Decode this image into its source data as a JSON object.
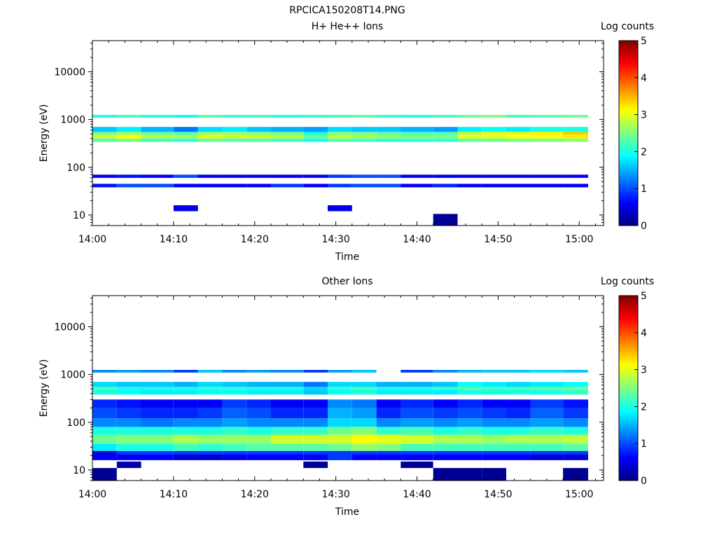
{
  "figure_title": "RPCICA150208T14.PNG",
  "colorscale": {
    "stops": [
      "#00007f",
      "#0000ff",
      "#007fff",
      "#00ffff",
      "#7fff7f",
      "#ffff00",
      "#ff7f00",
      "#ff0000",
      "#7f0000"
    ]
  },
  "chart_data": [
    {
      "type": "heatmap",
      "title": "H+ He++ Ions",
      "xlabel": "Time",
      "ylabel": "Energy (eV)",
      "yscale": "log",
      "ylim": [
        6,
        45000
      ],
      "xlim": [
        "14:00",
        "15:03"
      ],
      "xticks": [
        "14:00",
        "14:10",
        "14:20",
        "14:30",
        "14:40",
        "14:50",
        "15:00"
      ],
      "yticks": [
        {
          "value": 10,
          "label": "10"
        },
        {
          "value": 100,
          "label": "100"
        },
        {
          "value": 1000,
          "label": "1000"
        },
        {
          "value": 10000,
          "label": "10000"
        }
      ],
      "colorbar": {
        "label": "Log counts",
        "range": [
          0,
          5
        ],
        "ticks": [
          "0",
          "1",
          "2",
          "3",
          "4",
          "5"
        ]
      },
      "time_bins": [
        "14:00",
        "14:03",
        "14:06",
        "14:10",
        "14:13",
        "14:16",
        "14:19",
        "14:22",
        "14:26",
        "14:29",
        "14:32",
        "14:35",
        "14:38",
        "14:42",
        "14:45",
        "14:48",
        "14:51",
        "14:54",
        "14:58",
        "15:01"
      ],
      "bands": [
        {
          "e_low": 1100,
          "e_high": 1250,
          "values": [
            2.0,
            2.2,
            2.0,
            1.9,
            2.3,
            2.1,
            2.2,
            2.0,
            2.1,
            2.2,
            2.3,
            2.1,
            2.0,
            2.2,
            2.4,
            2.5,
            2.2,
            2.3,
            2.4,
            2.5
          ]
        },
        {
          "e_low": 550,
          "e_high": 700,
          "values": [
            1.6,
            1.8,
            1.5,
            1.2,
            1.7,
            1.8,
            1.6,
            1.5,
            1.4,
            1.7,
            1.6,
            1.6,
            1.5,
            1.4,
            1.8,
            1.9,
            1.8,
            2.0,
            2.0,
            2.1
          ]
        },
        {
          "e_low": 480,
          "e_high": 550,
          "values": [
            2.4,
            2.6,
            2.3,
            2.2,
            2.6,
            2.6,
            2.5,
            2.4,
            1.9,
            2.5,
            2.4,
            2.3,
            2.2,
            2.2,
            2.8,
            3.0,
            3.0,
            3.2,
            3.4,
            3.4
          ]
        },
        {
          "e_low": 400,
          "e_high": 480,
          "values": [
            2.9,
            3.1,
            2.8,
            2.7,
            3.0,
            2.9,
            2.9,
            2.8,
            2.4,
            2.8,
            2.7,
            2.6,
            2.5,
            2.5,
            3.0,
            3.0,
            3.1,
            3.1,
            3.2,
            3.3
          ]
        },
        {
          "e_low": 340,
          "e_high": 400,
          "values": [
            2.3,
            2.5,
            2.2,
            2.1,
            2.4,
            2.3,
            2.3,
            2.2,
            2.0,
            2.3,
            2.2,
            2.1,
            2.1,
            2.1,
            2.4,
            2.4,
            2.5,
            2.5,
            2.6,
            2.6
          ]
        },
        {
          "e_low": 60,
          "e_high": 70,
          "values": [
            0.6,
            0.7,
            0.6,
            1.0,
            0.6,
            0.6,
            0.6,
            0.6,
            0.6,
            0.9,
            1.0,
            1.0,
            0.6,
            0.6,
            0.6,
            0.6,
            0.6,
            0.6,
            0.6,
            0.6
          ]
        },
        {
          "e_low": 38,
          "e_high": 45,
          "values": [
            0.7,
            1.0,
            1.0,
            0.6,
            0.6,
            0.6,
            0.6,
            0.9,
            0.6,
            0.9,
            1.0,
            1.0,
            0.6,
            0.8,
            0.6,
            0.6,
            0.6,
            0.6,
            0.6,
            0.6
          ]
        },
        {
          "e_low": 12,
          "e_high": 16,
          "values": [
            null,
            null,
            null,
            0.5,
            null,
            null,
            null,
            null,
            null,
            0.5,
            null,
            null,
            null,
            null,
            null,
            null,
            null,
            null,
            null,
            null
          ]
        },
        {
          "e_low": 6,
          "e_high": 10.5,
          "values": [
            null,
            null,
            null,
            null,
            null,
            null,
            null,
            null,
            null,
            null,
            null,
            null,
            null,
            0.1,
            null,
            null,
            null,
            null,
            null,
            null
          ]
        }
      ]
    },
    {
      "type": "heatmap",
      "title": "Other Ions",
      "xlabel": "Time",
      "ylabel": "Energy (eV)",
      "yscale": "log",
      "ylim": [
        6,
        45000
      ],
      "xlim": [
        "14:00",
        "15:03"
      ],
      "xticks": [
        "14:00",
        "14:10",
        "14:20",
        "14:30",
        "14:40",
        "14:50",
        "15:00"
      ],
      "yticks": [
        {
          "value": 10,
          "label": "10"
        },
        {
          "value": 100,
          "label": "100"
        },
        {
          "value": 1000,
          "label": "1000"
        },
        {
          "value": 10000,
          "label": "10000"
        }
      ],
      "colorbar": {
        "label": "Log counts",
        "range": [
          0,
          5
        ],
        "ticks": [
          "0",
          "1",
          "2",
          "3",
          "4",
          "5"
        ]
      },
      "time_bins": [
        "14:00",
        "14:03",
        "14:06",
        "14:10",
        "14:13",
        "14:16",
        "14:19",
        "14:22",
        "14:26",
        "14:29",
        "14:32",
        "14:35",
        "14:38",
        "14:42",
        "14:45",
        "14:48",
        "14:51",
        "14:54",
        "14:58",
        "15:01"
      ],
      "bands": [
        {
          "e_low": 1100,
          "e_high": 1250,
          "values": [
            1.3,
            1.4,
            1.3,
            0.9,
            1.6,
            1.3,
            1.4,
            1.3,
            0.9,
            1.4,
            1.6,
            null,
            0.9,
            1.3,
            1.5,
            1.6,
            1.6,
            1.7,
            1.6,
            1.7
          ]
        },
        {
          "e_low": 550,
          "e_high": 700,
          "values": [
            1.7,
            1.6,
            1.6,
            1.5,
            1.7,
            1.6,
            1.5,
            1.5,
            1.2,
            1.7,
            1.7,
            1.5,
            1.5,
            1.6,
            1.9,
            1.8,
            1.7,
            1.8,
            1.9,
            1.9
          ]
        },
        {
          "e_low": 470,
          "e_high": 550,
          "values": [
            2.2,
            2.0,
            2.0,
            2.0,
            2.1,
            2.1,
            2.0,
            2.0,
            1.7,
            2.1,
            2.2,
            2.0,
            2.0,
            2.1,
            2.3,
            2.2,
            2.2,
            2.3,
            2.4,
            2.4
          ]
        },
        {
          "e_low": 380,
          "e_high": 470,
          "values": [
            2.0,
            1.9,
            1.8,
            1.8,
            1.9,
            1.9,
            1.8,
            1.8,
            1.6,
            1.9,
            2.0,
            1.8,
            1.8,
            1.8,
            2.0,
            2.0,
            2.0,
            2.0,
            2.1,
            2.1
          ]
        },
        {
          "e_low": 200,
          "e_high": 300,
          "values": [
            0.8,
            0.7,
            0.6,
            0.6,
            0.6,
            0.9,
            0.8,
            0.6,
            0.6,
            1.3,
            1.2,
            0.6,
            0.8,
            0.6,
            0.8,
            0.6,
            0.6,
            0.9,
            0.7,
            0.6
          ]
        },
        {
          "e_low": 120,
          "e_high": 200,
          "values": [
            1.0,
            0.9,
            0.8,
            0.8,
            0.9,
            1.1,
            1.0,
            0.8,
            0.8,
            1.5,
            1.4,
            0.8,
            1.0,
            0.9,
            1.0,
            0.9,
            0.8,
            1.1,
            0.9,
            0.9
          ]
        },
        {
          "e_low": 80,
          "e_high": 120,
          "values": [
            1.3,
            1.3,
            1.2,
            1.3,
            1.3,
            1.4,
            1.3,
            1.3,
            1.3,
            1.7,
            1.7,
            1.3,
            1.4,
            1.3,
            1.4,
            1.3,
            1.3,
            1.4,
            1.3,
            1.4
          ]
        },
        {
          "e_low": 55,
          "e_high": 80,
          "values": [
            2.0,
            2.0,
            2.0,
            2.0,
            2.0,
            2.1,
            2.0,
            2.1,
            2.1,
            2.4,
            2.5,
            2.1,
            2.2,
            2.0,
            2.1,
            2.0,
            2.0,
            2.1,
            2.0,
            2.1
          ]
        },
        {
          "e_low": 35,
          "e_high": 55,
          "values": [
            2.4,
            2.5,
            2.5,
            2.7,
            2.6,
            2.6,
            2.6,
            2.9,
            2.9,
            2.9,
            3.1,
            3.0,
            2.9,
            2.7,
            2.7,
            2.6,
            2.7,
            2.7,
            2.8,
            2.8
          ]
        },
        {
          "e_low": 25,
          "e_high": 35,
          "values": [
            1.8,
            2.0,
            2.0,
            2.2,
            2.1,
            2.2,
            2.3,
            2.3,
            2.3,
            2.4,
            2.6,
            2.5,
            2.2,
            2.2,
            2.2,
            2.2,
            2.2,
            2.2,
            2.3,
            2.3
          ]
        },
        {
          "e_low": 21,
          "e_high": 25,
          "values": [
            0.4,
            0.9,
            0.9,
            0.9,
            0.9,
            0.9,
            0.9,
            0.9,
            0.9,
            0.9,
            0.9,
            0.9,
            0.9,
            0.9,
            0.9,
            0.9,
            0.9,
            0.9,
            0.9,
            0.9
          ]
        },
        {
          "e_low": 16,
          "e_high": 21,
          "values": [
            0.6,
            0.6,
            0.6,
            0.4,
            0.4,
            0.5,
            0.6,
            0.6,
            0.6,
            0.9,
            0.6,
            0.6,
            0.6,
            0.6,
            0.6,
            0.6,
            0.6,
            0.4,
            0.4,
            0.6
          ]
        },
        {
          "e_low": 11,
          "e_high": 15,
          "values": [
            null,
            0.2,
            null,
            null,
            null,
            null,
            null,
            null,
            0.1,
            null,
            null,
            null,
            0.1,
            null,
            null,
            null,
            null,
            null,
            null,
            null
          ]
        },
        {
          "e_low": 6,
          "e_high": 11,
          "values": [
            0.1,
            null,
            null,
            null,
            null,
            null,
            null,
            null,
            null,
            null,
            null,
            null,
            null,
            0.1,
            0.1,
            0.1,
            null,
            null,
            0.1,
            0.1
          ]
        }
      ]
    }
  ]
}
